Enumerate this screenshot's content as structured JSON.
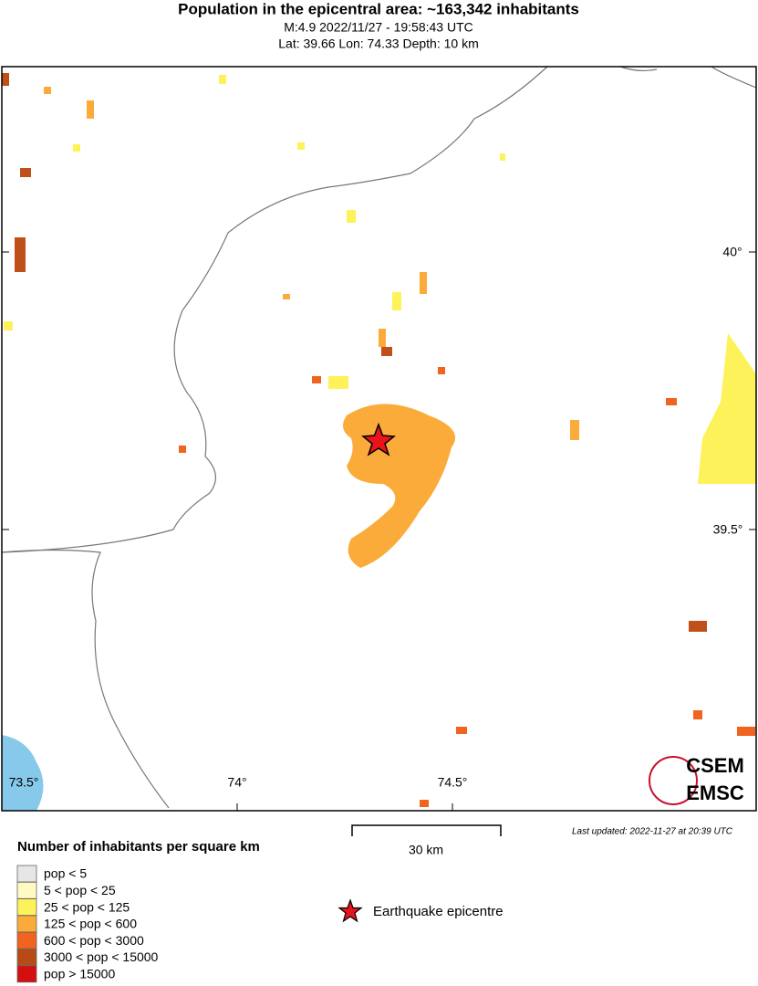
{
  "header": {
    "title": "Population in the epicentral area: ~163,342 inhabitants",
    "line1": "M:4.9 2022/11/27 - 19:58:43 UTC",
    "line2": "Lat: 39.66 Lon: 74.33 Depth: 10 km"
  },
  "map": {
    "lat_labels": [
      "40°",
      "39.5°"
    ],
    "lon_labels": [
      "73.5°",
      "74°",
      "74.5°"
    ],
    "scale": "30 km",
    "updated": "Last updated: 2022-11-27 at 20:39 UTC",
    "logo": [
      "CSEM",
      "EMSC"
    ]
  },
  "legend": {
    "title": "Number of inhabitants per square km",
    "items": [
      {
        "label": "pop < 5",
        "color": "#e6e6e6"
      },
      {
        "label": "5 < pop < 25",
        "color": "#fffac4"
      },
      {
        "label": "25 < pop < 125",
        "color": "#fef25a"
      },
      {
        "label": "125 < pop < 600",
        "color": "#fbab3a"
      },
      {
        "label": "600 < pop < 3000",
        "color": "#f06420"
      },
      {
        "label": "3000 < pop < 15000",
        "color": "#b84a16"
      },
      {
        "label": "pop > 15000",
        "color": "#d40f0f"
      }
    ],
    "epicentre": "Earthquake epicentre"
  }
}
